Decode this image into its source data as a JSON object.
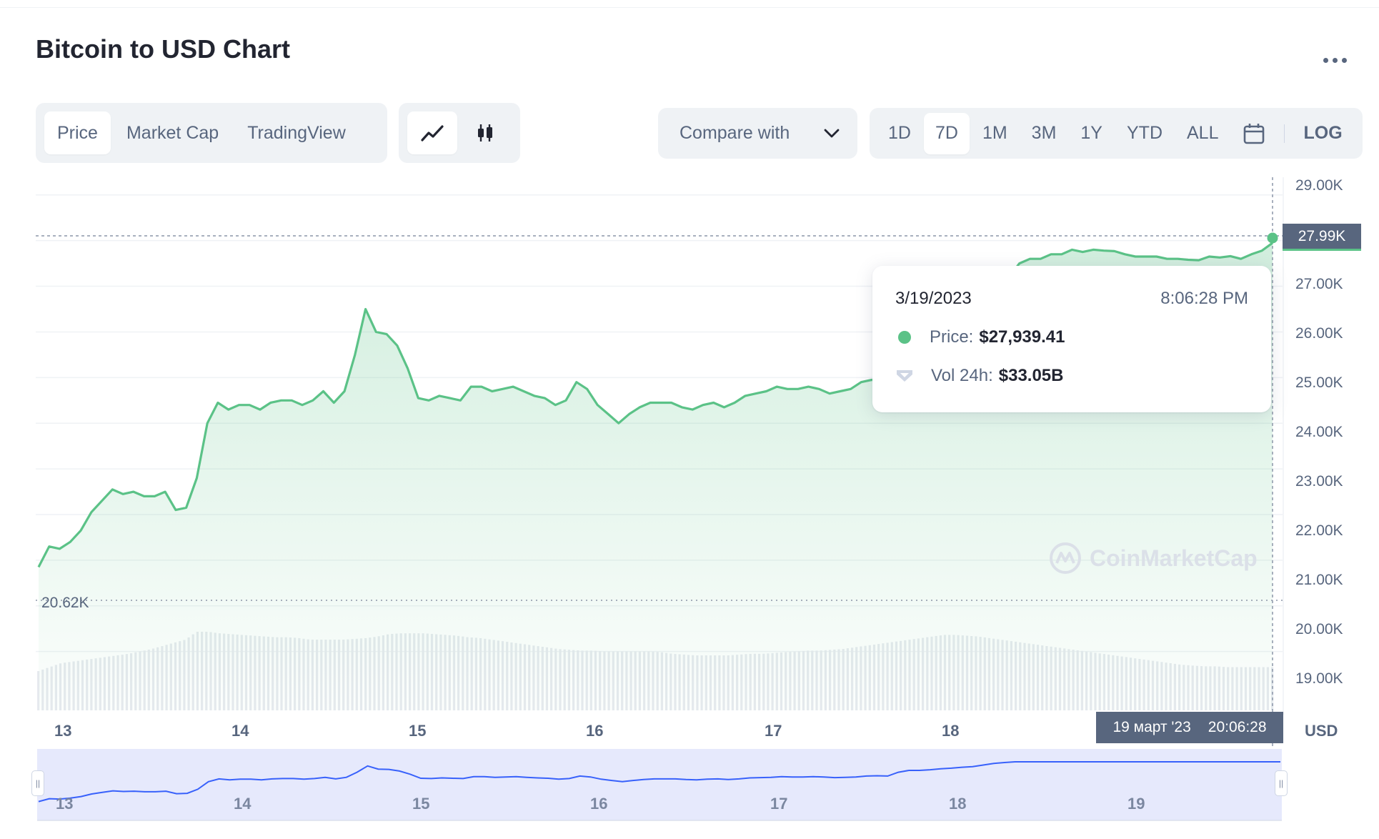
{
  "header": {
    "title": "Bitcoin to USD Chart"
  },
  "toolbar": {
    "view_tabs": [
      {
        "label": "Price",
        "active": true
      },
      {
        "label": "Market Cap",
        "active": false
      },
      {
        "label": "TradingView",
        "active": false
      }
    ],
    "chart_style_icons": [
      "line-chart-icon",
      "candlestick-icon"
    ],
    "compare_label": "Compare with",
    "ranges": [
      {
        "label": "1D",
        "active": false
      },
      {
        "label": "7D",
        "active": true
      },
      {
        "label": "1M",
        "active": false
      },
      {
        "label": "3M",
        "active": false
      },
      {
        "label": "1Y",
        "active": false
      },
      {
        "label": "YTD",
        "active": false
      },
      {
        "label": "ALL",
        "active": false
      }
    ],
    "log_label": "LOG"
  },
  "tooltip": {
    "date": "3/19/2023",
    "time": "8:06:28 PM",
    "price_label": "Price:",
    "price_value": "$27,939.41",
    "volume_label": "Vol 24h:",
    "volume_value": "$33.05B"
  },
  "crosshair": {
    "price_tag": "27.99K",
    "date_tag_date": "19 март '23",
    "date_tag_time": "20:06:28"
  },
  "min_label": "20.62K",
  "watermark": "CoinMarketCap",
  "currency_label": "USD",
  "colors": {
    "line": "#5bc287",
    "navigator_line": "#3861fb",
    "navigator_fill": "#e6e9fc",
    "text_muted": "#58667e"
  },
  "chart_data": {
    "type": "area",
    "title": "Bitcoin to USD Chart",
    "y_unit": "USD",
    "ylim": [
      18400,
      29200
    ],
    "y_ticks": [
      "29.00K",
      "27.00K",
      "26.00K",
      "25.00K",
      "24.00K",
      "23.00K",
      "22.00K",
      "21.00K",
      "20.00K",
      "19.00K"
    ],
    "x_ticks": [
      "13",
      "14",
      "15",
      "16",
      "17",
      "18"
    ],
    "navigator_ticks": [
      "13",
      "14",
      "15",
      "16",
      "17",
      "18",
      "19"
    ],
    "grid": true,
    "x_start_day": 12.85,
    "x_end_day": 19.84,
    "series": [
      {
        "values": [
          20850,
          21300,
          21250,
          21400,
          21650,
          22050,
          22300,
          22550,
          22450,
          22500,
          22400,
          22400,
          22500,
          22100,
          22150,
          22800,
          24000,
          24450,
          24300,
          24400,
          24400,
          24300,
          24450,
          24500,
          24500,
          24400,
          24500,
          24700,
          24450,
          24700,
          25500,
          26500,
          26000,
          25950,
          25700,
          25200,
          24550,
          24500,
          24600,
          24550,
          24500,
          24800,
          24800,
          24700,
          24750,
          24800,
          24700,
          24600,
          24550,
          24400,
          24500,
          24900,
          24750,
          24400,
          24200,
          24000,
          24200,
          24350,
          24450,
          24450,
          24450,
          24350,
          24300,
          24400,
          24450,
          24350,
          24450,
          24600,
          24650,
          24700,
          24800,
          24750,
          24750,
          24800,
          24750,
          24650,
          24700,
          24750,
          24900,
          24950,
          24900,
          25500,
          25800,
          25800,
          25900,
          26050,
          26150,
          26300,
          26400,
          26650,
          26900,
          27050,
          27200,
          27500,
          27600,
          27600,
          27700,
          27700,
          27800,
          27750,
          27800,
          27780,
          27770,
          27700,
          27650,
          27650,
          27650,
          27600,
          27600,
          27580,
          27570,
          27650,
          27630,
          27660,
          27600,
          27700,
          27780,
          27950
        ]
      }
    ],
    "volume_series": {
      "scale_note": "relative heights",
      "values": [
        0.5,
        0.55,
        0.6,
        0.62,
        0.64,
        0.66,
        0.68,
        0.7,
        0.72,
        0.75,
        0.78,
        0.82,
        0.86,
        0.9,
        1.0,
        1.0,
        0.98,
        0.97,
        0.96,
        0.95,
        0.94,
        0.93,
        0.93,
        0.92,
        0.9,
        0.9,
        0.9,
        0.9,
        0.91,
        0.92,
        0.94,
        0.97,
        0.98,
        0.98,
        0.98,
        0.97,
        0.96,
        0.95,
        0.93,
        0.92,
        0.9,
        0.88,
        0.86,
        0.84,
        0.82,
        0.8,
        0.78,
        0.77,
        0.76,
        0.76,
        0.75,
        0.75,
        0.75,
        0.75,
        0.75,
        0.74,
        0.72,
        0.71,
        0.7,
        0.7,
        0.7,
        0.7,
        0.71,
        0.72,
        0.72,
        0.73,
        0.74,
        0.75,
        0.76,
        0.76,
        0.77,
        0.78,
        0.8,
        0.82,
        0.84,
        0.86,
        0.88,
        0.9,
        0.92,
        0.94,
        0.96,
        0.96,
        0.95,
        0.94,
        0.92,
        0.9,
        0.88,
        0.86,
        0.84,
        0.82,
        0.8,
        0.78,
        0.76,
        0.74,
        0.72,
        0.7,
        0.68,
        0.66,
        0.64,
        0.62,
        0.6,
        0.58,
        0.57,
        0.56,
        0.56,
        0.55,
        0.55,
        0.55,
        0.55,
        0.55
      ]
    }
  }
}
